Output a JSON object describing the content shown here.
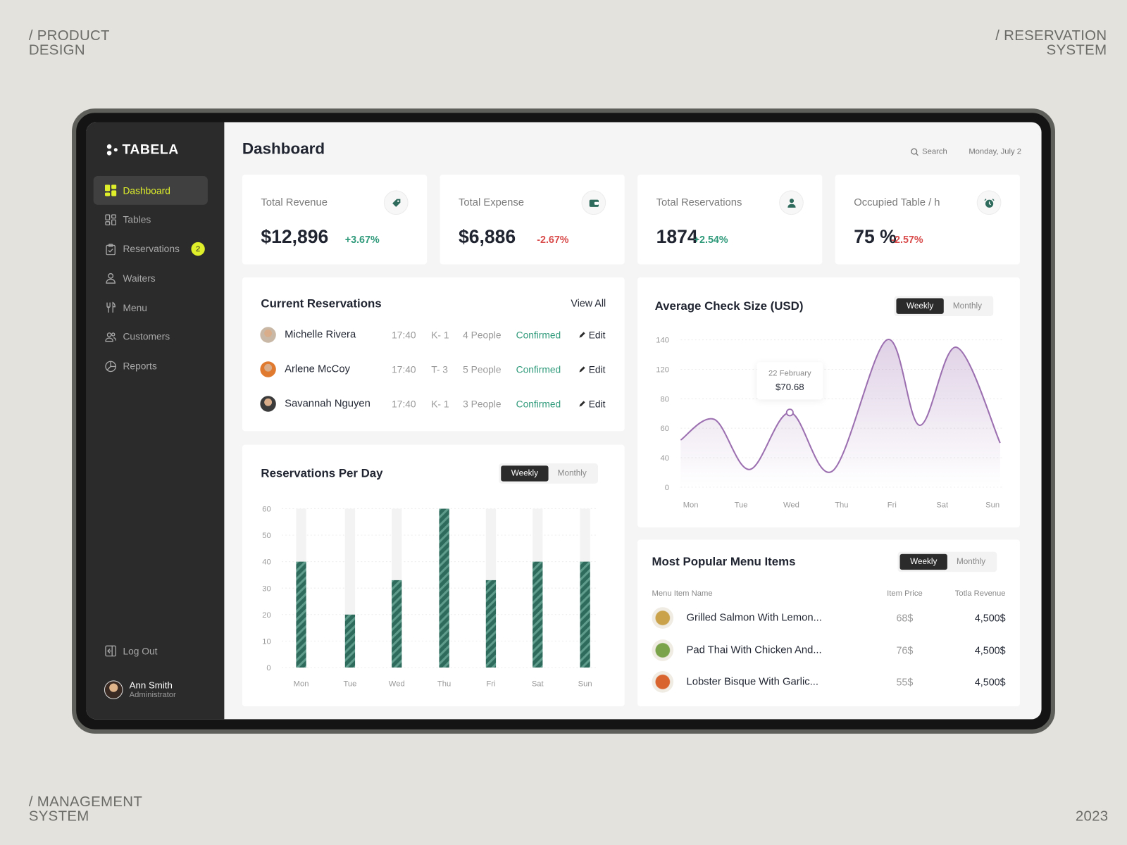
{
  "corners": {
    "top_left": [
      "/ PRODUCT",
      "DESIGN"
    ],
    "top_right": [
      "/ RESERVATION",
      "SYSTEM"
    ],
    "bottom_left": [
      "/ MANAGEMENT",
      "SYSTEM"
    ],
    "bottom_right": "2023"
  },
  "app": {
    "name": "TABELA"
  },
  "sidebar": {
    "items": [
      {
        "label": "Dashboard",
        "icon": "grid-icon",
        "active": true
      },
      {
        "label": "Tables",
        "icon": "tables-icon"
      },
      {
        "label": "Reservations",
        "icon": "clipboard-check-icon",
        "badge": "2"
      },
      {
        "label": "Waiters",
        "icon": "waiter-icon"
      },
      {
        "label": "Menu",
        "icon": "fork-knife-icon"
      },
      {
        "label": "Customers",
        "icon": "users-icon"
      },
      {
        "label": "Reports",
        "icon": "pie-chart-icon"
      }
    ],
    "logout": "Log Out",
    "user": {
      "name": "Ann Smith",
      "role": "Administrator"
    }
  },
  "header": {
    "title": "Dashboard",
    "search": "Search",
    "date": "Monday, July 2"
  },
  "stats": [
    {
      "label": "Total Revenue",
      "value": "$12,896",
      "change": "+3.67%",
      "trend": "up",
      "icon": "tag-icon"
    },
    {
      "label": "Total Expense",
      "value": "$6,886",
      "change": "-2.67%",
      "trend": "down",
      "icon": "wallet-icon"
    },
    {
      "label": "Total  Reservations",
      "value": "1874",
      "change": "+2.54%",
      "trend": "up",
      "icon": "user-icon"
    },
    {
      "label": "Occupied Table / h",
      "value": "75 %",
      "change": "-2.57%",
      "trend": "down",
      "icon": "clock-icon"
    }
  ],
  "reservations": {
    "title": "Current Reservations",
    "view_all": "View All",
    "rows": [
      {
        "name": "Michelle Rivera",
        "time": "17:40",
        "table": "K- 1",
        "people": "4 People",
        "status": "Confirmed",
        "action": "Edit"
      },
      {
        "name": "Arlene McCoy",
        "time": "17:40",
        "table": "T- 3",
        "people": "5 People",
        "status": "Confirmed",
        "action": "Edit"
      },
      {
        "name": "Savannah Nguyen",
        "time": "17:40",
        "table": "K- 1",
        "people": "3 People",
        "status": "Confirmed",
        "action": "Edit"
      }
    ]
  },
  "toggle": {
    "weekly": "Weekly",
    "monthly": "Monthly"
  },
  "chart_data": [
    {
      "type": "bar",
      "title": "Reservations Per Day",
      "categories": [
        "Mon",
        "Tue",
        "Wed",
        "Thu",
        "Fri",
        "Sat",
        "Sun"
      ],
      "values": [
        40,
        20,
        33,
        60,
        33,
        40,
        40
      ],
      "yticks": [
        0,
        10,
        20,
        30,
        40,
        50,
        60
      ],
      "ylim": [
        0,
        60
      ],
      "color": "#2e6b5c"
    },
    {
      "type": "area",
      "title": "Average Check Size (USD)",
      "categories": [
        "Mon",
        "Tue",
        "Wed",
        "Thu",
        "Fri",
        "Sat",
        "Sun"
      ],
      "yticks": [
        0,
        40,
        60,
        80,
        120,
        140
      ],
      "points": [
        [
          -0.2,
          52
        ],
        [
          0.47,
          66
        ],
        [
          1.17,
          24
        ],
        [
          1.97,
          70.68
        ],
        [
          2.82,
          22
        ],
        [
          3.9,
          140
        ],
        [
          4.55,
          62
        ],
        [
          5.28,
          135
        ],
        [
          6.15,
          50
        ]
      ],
      "tooltip": {
        "label": "22 February",
        "value": "$70.68",
        "x": 1.97,
        "y": 70.68
      },
      "color": "#9b6fb0"
    }
  ],
  "menu_items": {
    "title": "Most Popular Menu Items",
    "columns": [
      "Menu Item Name",
      "Item Price",
      "Totla Revenue"
    ],
    "rows": [
      {
        "name": "Grilled Salmon With Lemon...",
        "price": "68$",
        "revenue": "4,500$"
      },
      {
        "name": "Pad Thai With Chicken And...",
        "price": "76$",
        "revenue": "4,500$"
      },
      {
        "name": "Lobster Bisque With Garlic...",
        "price": "55$",
        "revenue": "4,500$"
      }
    ]
  }
}
